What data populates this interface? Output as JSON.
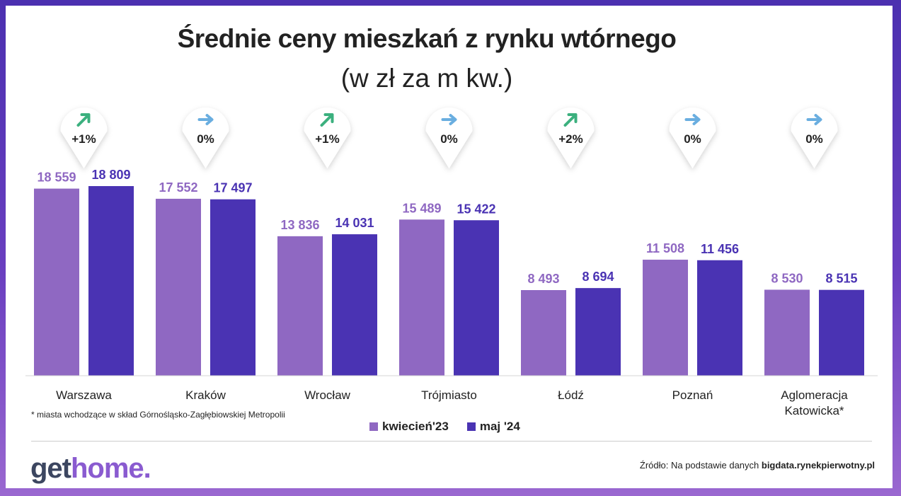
{
  "title": "Średnie ceny mieszkań z rynku wtórnego",
  "subtitle": "(w zł za m kw.)",
  "colors": {
    "series1": "#8f68c2",
    "series2": "#4a33b3",
    "up": "#3bb07e",
    "flat": "#6aaee0"
  },
  "chart_data": {
    "type": "bar",
    "title": "Średnie ceny mieszkań z rynku wtórnego",
    "subtitle": "(w zł za m kw.)",
    "categories": [
      "Warszawa",
      "Kraków",
      "Wrocław",
      "Trójmiasto",
      "Łódź",
      "Poznań",
      "Aglomeracja Katowicka*"
    ],
    "series": [
      {
        "name": "kwiecień'23",
        "values": [
          18559,
          17552,
          13836,
          15489,
          8493,
          11508,
          8530
        ],
        "labels": [
          "18 559",
          "17 552",
          "13 836",
          "15 489",
          "8 493",
          "11 508",
          "8 530"
        ]
      },
      {
        "name": "maj '24",
        "values": [
          18809,
          17497,
          14031,
          15422,
          8694,
          11456,
          8515
        ],
        "labels": [
          "18 809",
          "17 497",
          "14 031",
          "15 422",
          "8 694",
          "11 456",
          "8 515"
        ]
      }
    ],
    "changes": [
      {
        "label": "+1%",
        "direction": "up"
      },
      {
        "label": "0%",
        "direction": "flat"
      },
      {
        "label": "+1%",
        "direction": "up"
      },
      {
        "label": "0%",
        "direction": "flat"
      },
      {
        "label": "+2%",
        "direction": "up"
      },
      {
        "label": "0%",
        "direction": "flat"
      },
      {
        "label": "0%",
        "direction": "flat"
      }
    ],
    "ylim": [
      0,
      22000
    ],
    "grid": false,
    "legend": "bottom-center"
  },
  "legend": {
    "s1": "kwiecień'23",
    "s2": "maj '24"
  },
  "footnote": "* miasta wchodzące w skład Górnośląsko-Zagłębiowskiej Metropolii",
  "logo": {
    "part1": "get",
    "part2": "home."
  },
  "source": {
    "prefix": "Źródło: Na podstawie danych ",
    "site": "bigdata.rynekpierwotny.pl"
  }
}
